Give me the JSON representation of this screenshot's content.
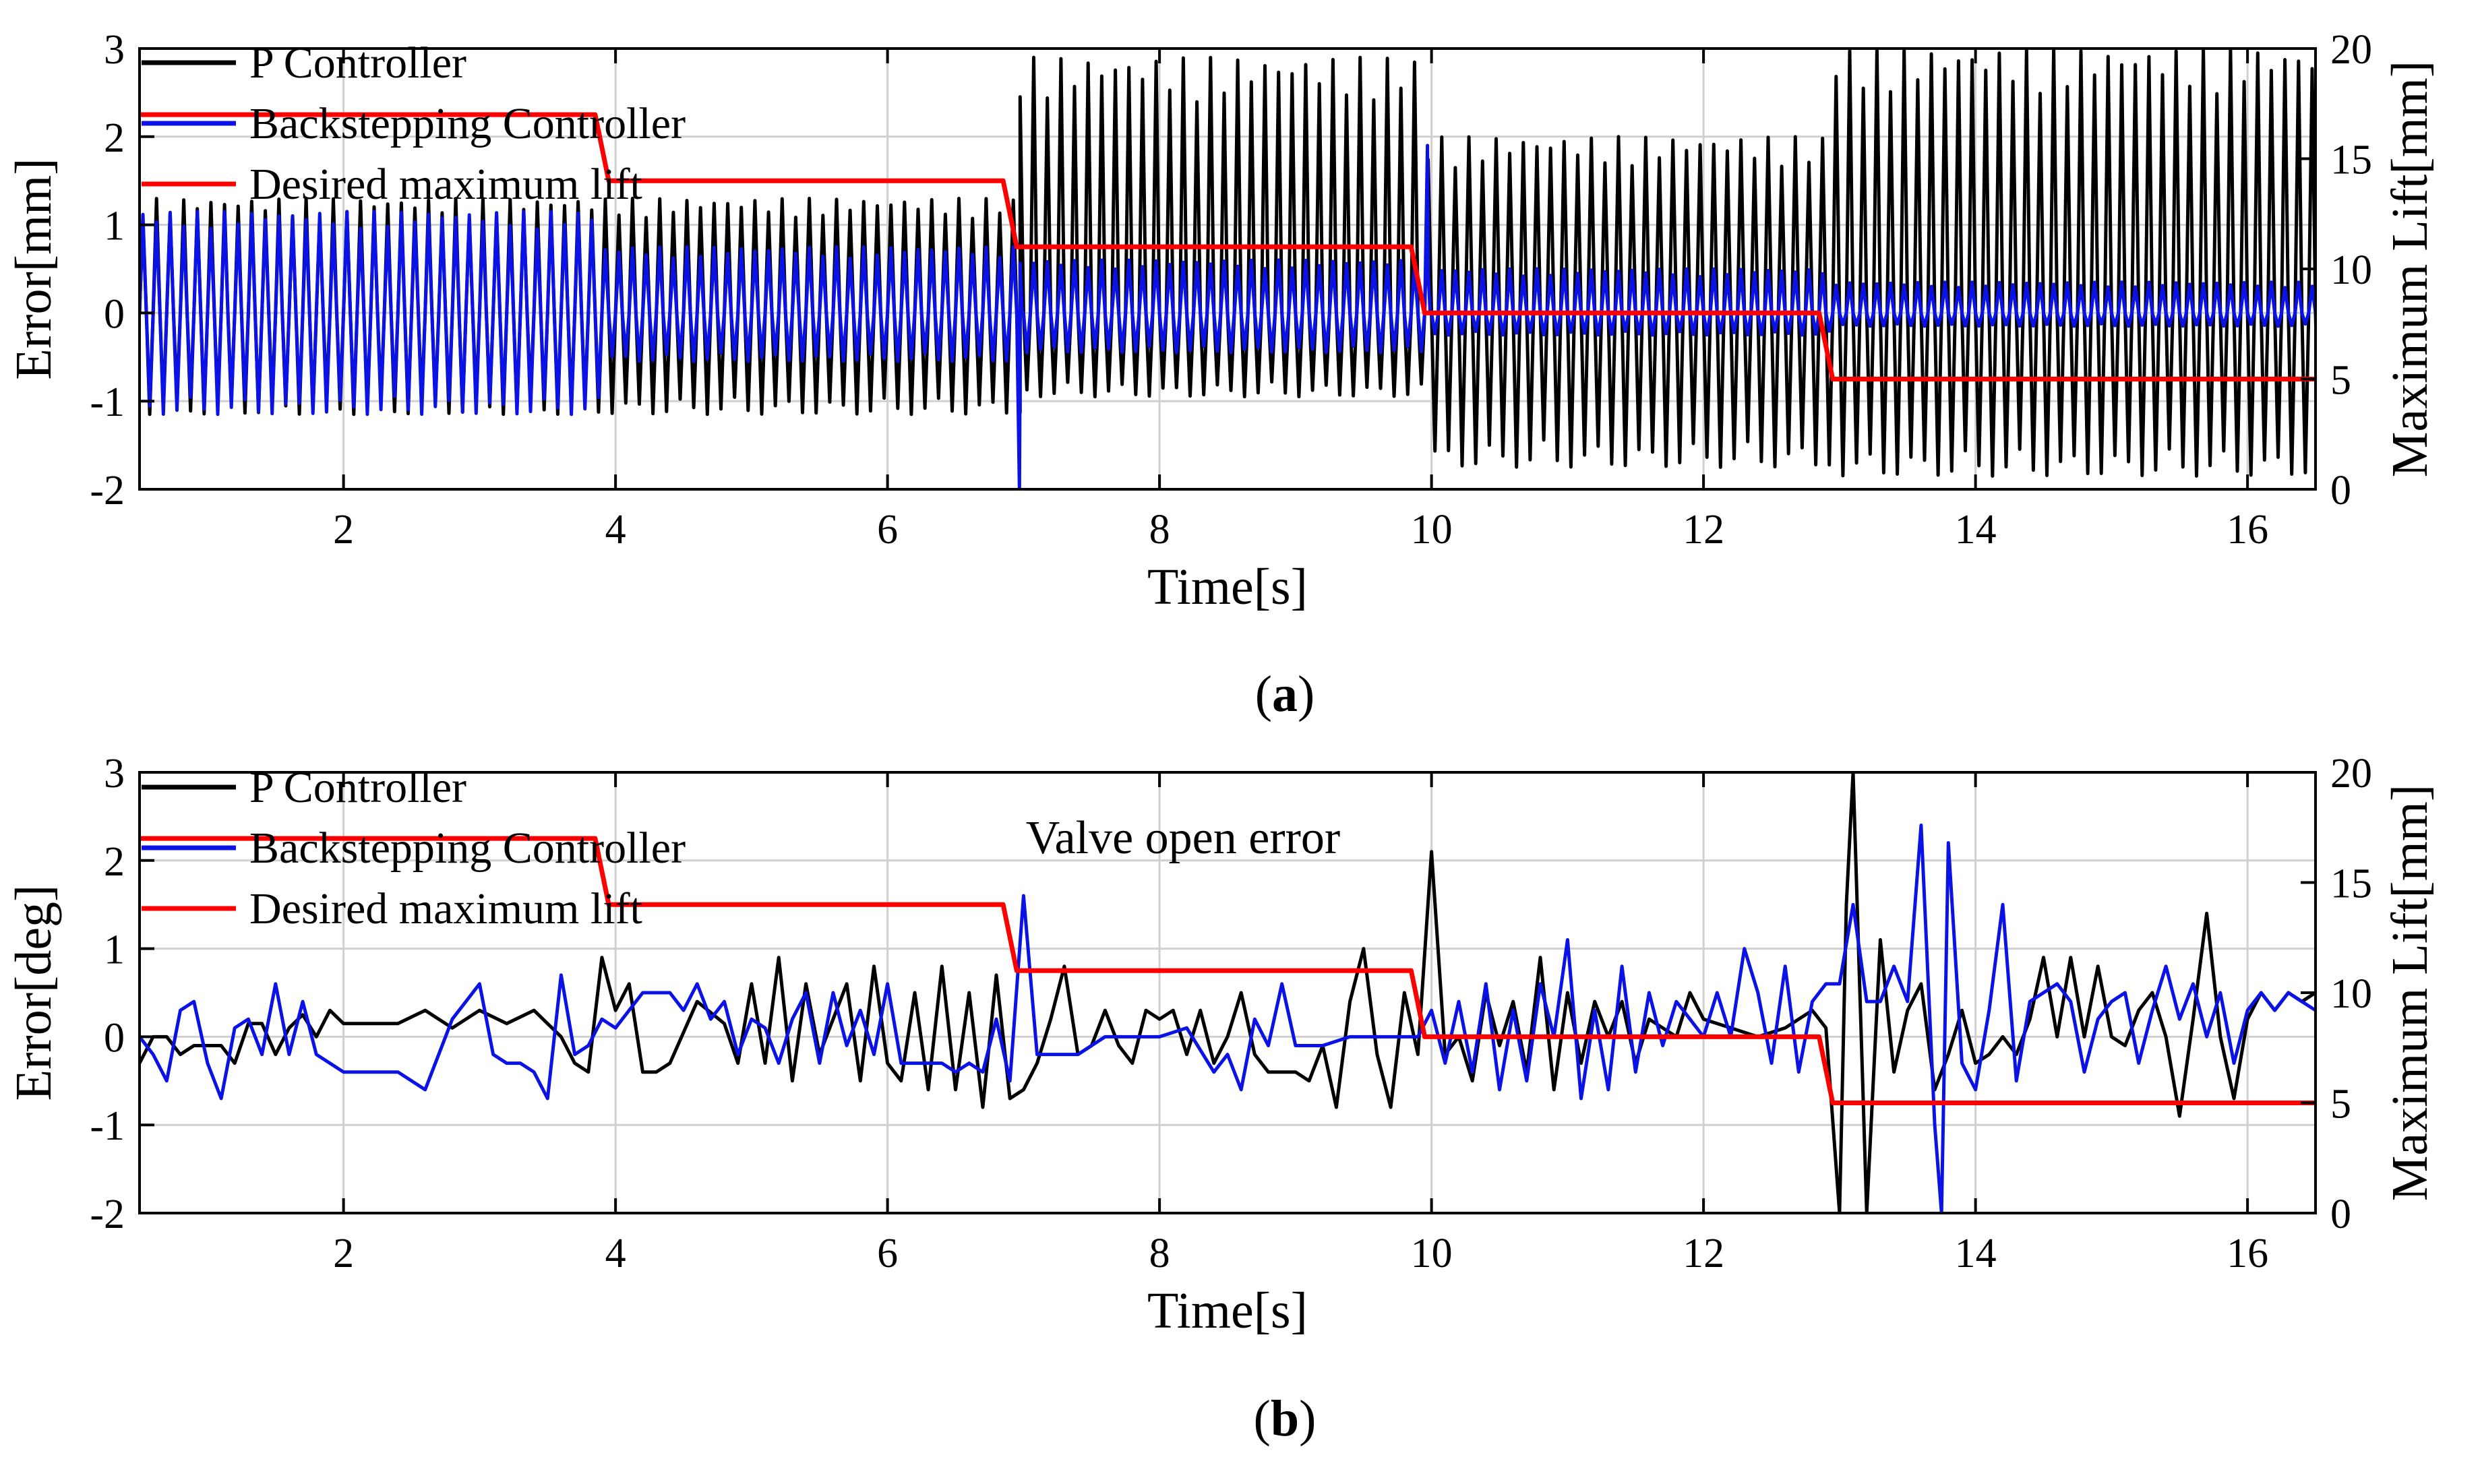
{
  "chart_data": [
    {
      "type": "line",
      "panel": "a",
      "caption_letter": "a",
      "xlabel": "Time[s]",
      "ylabel_left": "Error[mm]",
      "ylabel_right": "Maximum Lift[mm]",
      "xlim": [
        0.5,
        16.5
      ],
      "ylim_left": [
        -2,
        3
      ],
      "ylim_right": [
        0,
        20
      ],
      "xticks": [
        2,
        4,
        6,
        8,
        10,
        12,
        14,
        16
      ],
      "yticks_left": [
        -2,
        -1,
        0,
        1,
        2,
        3
      ],
      "yticks_right": [
        0,
        5,
        10,
        15,
        20
      ],
      "grid": true,
      "legend_position": "top-left",
      "annotation": "",
      "series": [
        {
          "name": "P Controller",
          "color": "#000000",
          "axis": "left",
          "kind": "oscillation",
          "period_s": 0.1,
          "segments": [
            {
              "start": 0.5,
              "end": 6.95,
              "max": 1.3,
              "min": -1.15
            },
            {
              "start": 6.95,
              "end": 9.95,
              "max": 2.9,
              "min": -0.95
            },
            {
              "start": 9.95,
              "end": 12.95,
              "max": 2.0,
              "min": -1.75
            },
            {
              "start": 12.95,
              "end": 16.5,
              "max": 3.0,
              "min": -1.85
            }
          ]
        },
        {
          "name": "Backstepping Controller",
          "color": "#0a12e6",
          "axis": "left",
          "kind": "oscillation",
          "period_s": 0.1,
          "segments": [
            {
              "start": 0.5,
              "end": 3.9,
              "max": 1.15,
              "min": -1.15
            },
            {
              "start": 3.9,
              "end": 6.95,
              "max": 0.75,
              "min": -0.55
            },
            {
              "start": 6.95,
              "end": 9.95,
              "max": 0.6,
              "min": -0.45
            },
            {
              "start": 9.95,
              "end": 12.95,
              "max": 0.5,
              "min": -0.25
            },
            {
              "start": 12.95,
              "end": 16.5,
              "max": 0.35,
              "min": -0.15
            }
          ],
          "spikes": [
            {
              "x": 6.97,
              "y": -2.0
            },
            {
              "x": 9.97,
              "y": 1.9
            }
          ]
        },
        {
          "name": "Desired maximum lift",
          "color": "#ff0000",
          "axis": "right",
          "x": [
            0.5,
            3.85,
            3.95,
            6.85,
            6.95,
            9.85,
            9.95,
            12.85,
            12.95,
            16.5
          ],
          "y": [
            17,
            17,
            14,
            14,
            11,
            11,
            8,
            8,
            5,
            5
          ]
        }
      ]
    },
    {
      "type": "line",
      "panel": "b",
      "caption_letter": "b",
      "xlabel": "Time[s]",
      "ylabel_left": "Error[deg]",
      "ylabel_right": "Maximum Lift[mm]",
      "xlim": [
        0.5,
        16.5
      ],
      "ylim_left": [
        -2,
        3
      ],
      "ylim_right": [
        0,
        20
      ],
      "xticks": [
        2,
        4,
        6,
        8,
        10,
        12,
        14,
        16
      ],
      "yticks_left": [
        -2,
        -1,
        0,
        1,
        2,
        3
      ],
      "yticks_right": [
        0,
        5,
        10,
        15,
        20
      ],
      "grid": true,
      "legend_position": "top-left",
      "annotation": "Valve open error",
      "series": [
        {
          "name": "P Controller",
          "color": "#000000",
          "axis": "left",
          "x": [
            0.5,
            0.6,
            0.7,
            0.8,
            0.9,
            1.0,
            1.1,
            1.2,
            1.3,
            1.4,
            1.5,
            1.6,
            1.7,
            1.8,
            1.9,
            2.0,
            2.2,
            2.4,
            2.6,
            2.8,
            3.0,
            3.2,
            3.4,
            3.6,
            3.7,
            3.8,
            3.9,
            4.0,
            4.1,
            4.2,
            4.3,
            4.4,
            4.6,
            4.8,
            4.9,
            5.0,
            5.1,
            5.2,
            5.3,
            5.4,
            5.5,
            5.6,
            5.7,
            5.8,
            5.9,
            6.0,
            6.1,
            6.2,
            6.3,
            6.4,
            6.5,
            6.6,
            6.7,
            6.8,
            6.9,
            7.0,
            7.1,
            7.2,
            7.3,
            7.4,
            7.5,
            7.6,
            7.7,
            7.8,
            7.9,
            8.0,
            8.1,
            8.2,
            8.3,
            8.4,
            8.5,
            8.6,
            8.7,
            8.8,
            8.9,
            9.0,
            9.1,
            9.2,
            9.3,
            9.4,
            9.5,
            9.6,
            9.7,
            9.8,
            9.9,
            10.0,
            10.1,
            10.2,
            10.3,
            10.4,
            10.5,
            10.6,
            10.7,
            10.8,
            10.9,
            11.0,
            11.1,
            11.2,
            11.3,
            11.4,
            11.5,
            11.6,
            11.7,
            11.8,
            11.9,
            12.0,
            12.2,
            12.4,
            12.6,
            12.8,
            12.9,
            13.0,
            13.05,
            13.1,
            13.15,
            13.2,
            13.3,
            13.4,
            13.5,
            13.6,
            13.7,
            13.8,
            13.9,
            14.0,
            14.1,
            14.2,
            14.3,
            14.4,
            14.5,
            14.6,
            14.7,
            14.8,
            14.9,
            15.0,
            15.1,
            15.2,
            15.3,
            15.4,
            15.5,
            15.6,
            15.7,
            15.8,
            15.9,
            16.0,
            16.1,
            16.2,
            16.3,
            16.4,
            16.5
          ],
          "y": [
            -0.3,
            0.0,
            0.0,
            -0.2,
            -0.1,
            -0.1,
            -0.1,
            -0.3,
            0.15,
            0.15,
            -0.2,
            0.1,
            0.25,
            0.0,
            0.3,
            0.15,
            0.15,
            0.15,
            0.3,
            0.1,
            0.3,
            0.15,
            0.3,
            0.0,
            -0.3,
            -0.4,
            0.9,
            0.3,
            0.6,
            -0.4,
            -0.4,
            -0.3,
            0.4,
            0.15,
            -0.3,
            0.6,
            -0.3,
            0.9,
            -0.5,
            0.6,
            -0.2,
            0.2,
            0.6,
            -0.5,
            0.8,
            -0.3,
            -0.5,
            0.5,
            -0.6,
            0.8,
            -0.6,
            0.5,
            -0.8,
            0.7,
            -0.7,
            -0.6,
            -0.3,
            0.2,
            0.8,
            -0.2,
            -0.1,
            0.3,
            -0.1,
            -0.3,
            0.3,
            0.2,
            0.3,
            -0.2,
            0.3,
            -0.3,
            0.0,
            0.5,
            -0.2,
            -0.4,
            -0.4,
            -0.4,
            -0.5,
            -0.1,
            -0.8,
            0.4,
            1.0,
            -0.2,
            -0.8,
            0.5,
            -0.2,
            2.1,
            -0.2,
            0.0,
            -0.5,
            0.5,
            -0.1,
            0.4,
            -0.4,
            0.9,
            -0.6,
            0.5,
            -0.3,
            0.4,
            0.0,
            0.4,
            -0.3,
            0.2,
            0.1,
            0.0,
            0.5,
            0.2,
            0.1,
            0.0,
            0.1,
            0.3,
            0.1,
            -2.0,
            1.5,
            3.0,
            0.5,
            -2.0,
            1.1,
            -0.4,
            0.3,
            0.6,
            -0.6,
            -0.2,
            0.3,
            -0.3,
            -0.2,
            0.0,
            -0.2,
            0.2,
            0.9,
            0.0,
            0.9,
            0.0,
            0.8,
            0.0,
            -0.1,
            0.3,
            0.5,
            0.0,
            -0.9,
            0.2,
            1.4,
            0.0,
            -0.7,
            0.2,
            0.5,
            0.3,
            0.5,
            0.4,
            0.5
          ]
        },
        {
          "name": "Backstepping Controller",
          "color": "#0a12e6",
          "axis": "left",
          "x": [
            0.5,
            0.6,
            0.7,
            0.8,
            0.9,
            1.0,
            1.1,
            1.2,
            1.3,
            1.4,
            1.5,
            1.6,
            1.7,
            1.8,
            1.9,
            2.0,
            2.2,
            2.4,
            2.6,
            2.8,
            3.0,
            3.1,
            3.2,
            3.3,
            3.4,
            3.5,
            3.6,
            3.7,
            3.8,
            3.9,
            4.0,
            4.2,
            4.4,
            4.5,
            4.6,
            4.7,
            4.8,
            4.9,
            5.0,
            5.1,
            5.2,
            5.3,
            5.4,
            5.5,
            5.6,
            5.7,
            5.8,
            5.9,
            6.0,
            6.1,
            6.2,
            6.3,
            6.4,
            6.5,
            6.6,
            6.7,
            6.8,
            6.9,
            7.0,
            7.1,
            7.2,
            7.4,
            7.6,
            7.8,
            8.0,
            8.2,
            8.4,
            8.5,
            8.6,
            8.7,
            8.8,
            8.9,
            9.0,
            9.2,
            9.4,
            9.6,
            9.8,
            9.9,
            10.0,
            10.1,
            10.2,
            10.3,
            10.4,
            10.5,
            10.6,
            10.7,
            10.8,
            10.9,
            11.0,
            11.1,
            11.2,
            11.3,
            11.4,
            11.5,
            11.6,
            11.7,
            11.8,
            11.9,
            12.0,
            12.1,
            12.2,
            12.3,
            12.4,
            12.5,
            12.6,
            12.7,
            12.8,
            12.9,
            13.0,
            13.1,
            13.2,
            13.3,
            13.4,
            13.5,
            13.6,
            13.7,
            13.75,
            13.8,
            13.9,
            14.0,
            14.1,
            14.2,
            14.3,
            14.4,
            14.5,
            14.6,
            14.7,
            14.8,
            14.9,
            15.0,
            15.1,
            15.2,
            15.3,
            15.4,
            15.5,
            15.6,
            15.7,
            15.8,
            15.9,
            16.0,
            16.1,
            16.2,
            16.3,
            16.4,
            16.5
          ],
          "y": [
            0.0,
            -0.2,
            -0.5,
            0.3,
            0.4,
            -0.3,
            -0.7,
            0.1,
            0.2,
            -0.2,
            0.6,
            -0.2,
            0.4,
            -0.2,
            -0.3,
            -0.4,
            -0.4,
            -0.4,
            -0.6,
            0.2,
            0.6,
            -0.2,
            -0.3,
            -0.3,
            -0.4,
            -0.7,
            0.7,
            -0.2,
            -0.1,
            0.2,
            0.1,
            0.5,
            0.5,
            0.3,
            0.6,
            0.2,
            0.4,
            -0.2,
            0.2,
            0.1,
            -0.3,
            0.2,
            0.5,
            -0.3,
            0.5,
            -0.1,
            0.3,
            -0.2,
            0.6,
            -0.3,
            -0.3,
            -0.3,
            -0.3,
            -0.4,
            -0.3,
            -0.4,
            0.2,
            -0.5,
            1.6,
            -0.2,
            -0.2,
            -0.2,
            0.0,
            0.0,
            0.0,
            0.1,
            -0.4,
            -0.2,
            -0.6,
            0.2,
            -0.1,
            0.6,
            -0.1,
            -0.1,
            0.0,
            0.0,
            0.0,
            0.0,
            0.3,
            -0.3,
            0.4,
            -0.4,
            0.6,
            -0.6,
            0.3,
            -0.5,
            0.6,
            0.0,
            1.1,
            -0.7,
            0.3,
            -0.6,
            0.8,
            -0.4,
            0.5,
            -0.1,
            0.4,
            0.2,
            0.0,
            0.5,
            0.0,
            1.0,
            0.5,
            -0.3,
            0.8,
            -0.4,
            0.4,
            0.6,
            0.6,
            1.5,
            0.4,
            0.4,
            0.8,
            0.4,
            2.4,
            -1.0,
            -2.0,
            2.2,
            -0.3,
            -0.6,
            0.3,
            1.5,
            -0.5,
            0.4,
            0.5,
            0.6,
            0.4,
            -0.4,
            0.2,
            0.4,
            0.5,
            -0.3,
            0.3,
            0.8,
            0.2,
            0.6,
            0.0,
            0.5,
            -0.3,
            0.3,
            0.5,
            0.3,
            0.5,
            0.4,
            0.3
          ]
        },
        {
          "name": "Desired maximum lift",
          "color": "#ff0000",
          "axis": "right",
          "x": [
            0.5,
            3.85,
            3.95,
            6.85,
            6.95,
            9.85,
            9.95,
            12.85,
            12.95,
            16.5
          ],
          "y": [
            17,
            17,
            14,
            14,
            11,
            11,
            8,
            8,
            5,
            5
          ]
        }
      ]
    }
  ]
}
